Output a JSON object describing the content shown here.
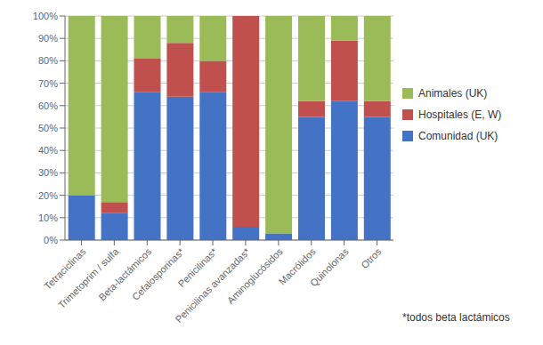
{
  "chart_data": {
    "type": "bar",
    "stacked": true,
    "categories": [
      "Tetraciclinas",
      "Trimetoprim / sulfa",
      "Beta-lactámicos",
      "Cefalosporinas*",
      "Penicilinas*",
      "Penicilinas avanzadas*",
      "Aminoglucósidos",
      "Macrólidos",
      "Quinolonas",
      "Otros"
    ],
    "series": [
      {
        "name": "Comunidad (UK)",
        "color": "#4472C4",
        "values": [
          20,
          12,
          66,
          64,
          66,
          6,
          3,
          55,
          62,
          55
        ]
      },
      {
        "name": "Hospitales (E, W)",
        "color": "#C0504D",
        "values": [
          0,
          5,
          15,
          24,
          14,
          94,
          0,
          7,
          27,
          7
        ]
      },
      {
        "name": "Animales (UK)",
        "color": "#9BBB59",
        "values": [
          80,
          83,
          19,
          12,
          20,
          0,
          97,
          38,
          11,
          38
        ]
      }
    ],
    "ylim": [
      0,
      100
    ],
    "yticks": [
      {
        "value": 0,
        "label": "0%"
      },
      {
        "value": 10,
        "label": "10%"
      },
      {
        "value": 20,
        "label": "20%"
      },
      {
        "value": 30,
        "label": "30%"
      },
      {
        "value": 40,
        "label": "40%"
      },
      {
        "value": 50,
        "label": "50%"
      },
      {
        "value": 60,
        "label": "60%"
      },
      {
        "value": 70,
        "label": "70%"
      },
      {
        "value": 80,
        "label": "80%"
      },
      {
        "value": 90,
        "label": "90%"
      },
      {
        "value": 100,
        "label": "100%"
      }
    ],
    "grid": true,
    "legend": "right",
    "annotations": [
      "*todos beta lactámicos"
    ]
  }
}
